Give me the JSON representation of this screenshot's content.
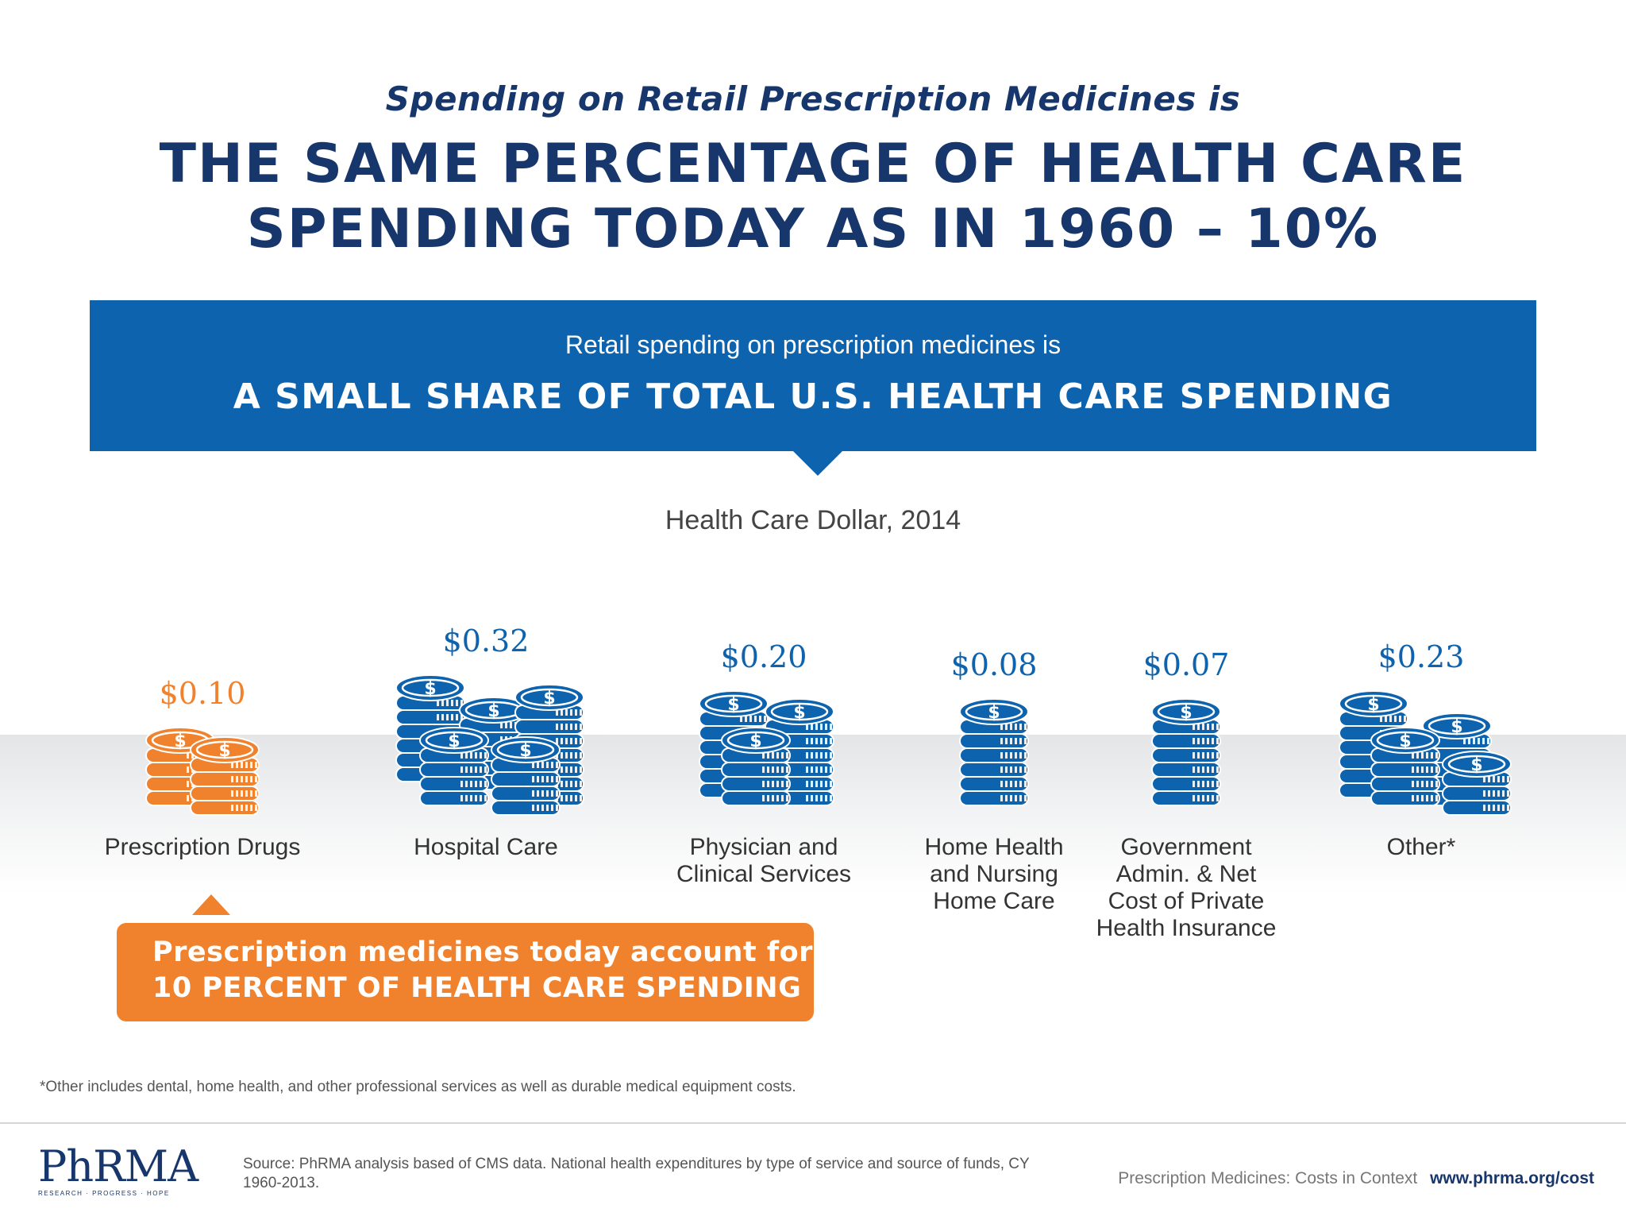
{
  "header": {
    "subtitle": "Spending on Retail Prescription Medicines is",
    "headline_line1": "THE SAME PERCENTAGE OF HEALTH CARE",
    "headline_line2": "SPENDING TODAY AS IN 1960 – 10%"
  },
  "banner": {
    "small": "Retail spending on prescription medicines is",
    "big": "A SMALL SHARE OF TOTAL U.S. HEALTH CARE SPENDING"
  },
  "chart_data": {
    "type": "table",
    "title": "Health Care Dollar, 2014",
    "unit": "dollars per health care dollar",
    "categories": [
      "Prescription Drugs",
      "Hospital Care",
      "Physician and\nClinical Services",
      "Home Health\nand Nursing\nHome Care",
      "Government\nAdmin. & Net\nCost of Private\nHealth Insurance",
      "Other*"
    ],
    "values": [
      0.1,
      0.32,
      0.2,
      0.08,
      0.07,
      0.23
    ],
    "value_labels": [
      "$0.10",
      "$0.32",
      "$0.20",
      "$0.08",
      "$0.07",
      "$0.23"
    ],
    "highlight": "Prescription Drugs"
  },
  "colors": {
    "navy": "#17366b",
    "blue": "#0d63ad",
    "orange": "#f0822e"
  },
  "callout": {
    "line1": "Prescription medicines today account for just",
    "line2": "10 PERCENT OF HEALTH CARE SPENDING"
  },
  "footnote": "*Other includes dental, home health, and other professional services as well as durable medical equipment costs.",
  "footer": {
    "logo_text": "PhRMA",
    "logo_sub": "RESEARCH · PROGRESS · HOPE",
    "source": "Source: PhRMA analysis based of CMS data. National health expenditures by type of service and source of funds, CY 1960-2013.",
    "tagline": "Prescription Medicines: Costs in Context",
    "url": "www.phrma.org/cost"
  }
}
